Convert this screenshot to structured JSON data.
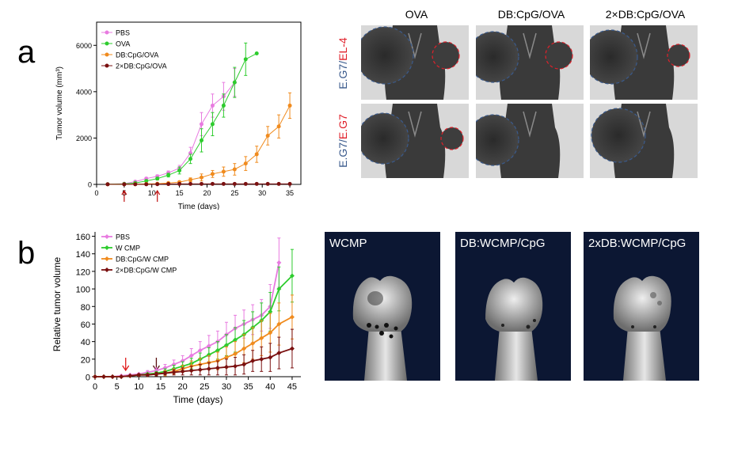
{
  "panel_a_letter": "a",
  "panel_b_letter": "b",
  "mouse_images": {
    "columns": [
      "OVA",
      "DB:CpG/OVA",
      "2×DB:CpG/OVA"
    ],
    "row_labels": [
      {
        "left": "E.G7",
        "sep": "/",
        "right": "EL-4"
      },
      {
        "left": "E.G7",
        "sep": "/",
        "right": "E.G7"
      }
    ],
    "left_color": "#3a5a8c",
    "right_color": "#e0202a"
  },
  "ct_images": {
    "labels": [
      "WCMP",
      "DB:WCMP/CpG",
      "2xDB:WCMP/CpG"
    ]
  },
  "chart_data": [
    {
      "type": "line",
      "xlabel": "Time (days)",
      "ylabel": "Tumor volume (mm³)",
      "xlim": [
        0,
        37
      ],
      "ylim": [
        0,
        7000
      ],
      "xticks": [
        0,
        5,
        10,
        15,
        20,
        25,
        30,
        35
      ],
      "yticks": [
        0,
        2000,
        4000,
        6000
      ],
      "arrows_at": [
        5,
        11
      ],
      "arrow_color": "#c01010",
      "legend_position": "top-left",
      "series": [
        {
          "name": "PBS",
          "color": "#e87be0",
          "x": [
            2,
            5,
            7,
            9,
            11,
            13,
            15,
            17,
            19,
            21,
            23,
            25
          ],
          "y": [
            10,
            30,
            120,
            250,
            350,
            500,
            700,
            1350,
            2600,
            3400,
            3800,
            4400
          ],
          "err": [
            0,
            0,
            30,
            50,
            60,
            80,
            120,
            250,
            500,
            500,
            600,
            600
          ]
        },
        {
          "name": "OVA",
          "color": "#2ecc2e",
          "x": [
            2,
            5,
            7,
            9,
            11,
            13,
            15,
            17,
            19,
            21,
            23,
            25,
            27,
            29
          ],
          "y": [
            10,
            20,
            60,
            150,
            250,
            400,
            600,
            1100,
            1900,
            2600,
            3400,
            4400,
            5400,
            5650
          ],
          "err": [
            0,
            0,
            20,
            40,
            60,
            80,
            150,
            200,
            500,
            500,
            500,
            650,
            700,
            0
          ]
        },
        {
          "name": "DB:CpG/OVA",
          "color": "#f08b1e",
          "x": [
            2,
            5,
            7,
            9,
            11,
            13,
            15,
            17,
            19,
            21,
            23,
            25,
            27,
            29,
            31,
            33,
            35
          ],
          "y": [
            5,
            5,
            10,
            20,
            30,
            60,
            100,
            200,
            300,
            450,
            550,
            650,
            900,
            1300,
            2100,
            2500,
            3400
          ],
          "err": [
            0,
            0,
            0,
            0,
            10,
            20,
            40,
            80,
            150,
            150,
            200,
            250,
            300,
            350,
            400,
            500,
            550
          ]
        },
        {
          "name": "2×DB:CpG/OVA",
          "color": "#7a1010",
          "x": [
            2,
            5,
            7,
            9,
            11,
            13,
            15,
            17,
            19,
            21,
            23,
            25,
            27,
            29,
            31,
            33,
            35
          ],
          "y": [
            5,
            5,
            5,
            5,
            10,
            15,
            20,
            20,
            20,
            20,
            20,
            20,
            20,
            20,
            20,
            20,
            20
          ],
          "err": [
            0,
            0,
            0,
            0,
            0,
            0,
            0,
            0,
            0,
            0,
            0,
            0,
            0,
            0,
            0,
            0,
            0
          ]
        }
      ]
    },
    {
      "type": "line",
      "xlabel": "Time (days)",
      "ylabel": "Relative tumor volume",
      "xlim": [
        0,
        47
      ],
      "ylim": [
        0,
        165
      ],
      "xticks": [
        0,
        5,
        10,
        15,
        20,
        25,
        30,
        35,
        40,
        45
      ],
      "yticks": [
        0,
        20,
        40,
        60,
        80,
        100,
        120,
        140,
        160
      ],
      "arrows_at": [
        7,
        14
      ],
      "arrow_colors": [
        "#e01a1a",
        "#5a0f0f"
      ],
      "legend_position": "top-left",
      "series": [
        {
          "name": "PBS",
          "color": "#e87be0",
          "x": [
            0,
            2,
            4,
            6,
            8,
            10,
            12,
            14,
            16,
            18,
            20,
            22,
            24,
            26,
            28,
            30,
            32,
            34,
            36,
            38,
            40,
            42
          ],
          "y": [
            0,
            0,
            0,
            1,
            2,
            3,
            5,
            7,
            10,
            14,
            18,
            24,
            30,
            35,
            40,
            48,
            55,
            60,
            65,
            70,
            80,
            130
          ],
          "err": [
            0,
            0,
            0,
            0,
            0,
            1,
            2,
            3,
            4,
            5,
            6,
            8,
            10,
            12,
            12,
            14,
            15,
            16,
            17,
            18,
            25,
            28
          ]
        },
        {
          "name": "W CMP",
          "color": "#2ecc2e",
          "x": [
            0,
            2,
            4,
            6,
            8,
            10,
            12,
            14,
            16,
            18,
            20,
            22,
            24,
            26,
            28,
            30,
            32,
            34,
            36,
            38,
            40,
            42,
            45
          ],
          "y": [
            0,
            0,
            0,
            0,
            1,
            2,
            3,
            4,
            6,
            9,
            12,
            15,
            20,
            25,
            30,
            36,
            42,
            48,
            56,
            64,
            74,
            100,
            115
          ],
          "err": [
            0,
            0,
            0,
            0,
            0,
            1,
            1,
            2,
            3,
            4,
            5,
            6,
            7,
            8,
            10,
            12,
            14,
            16,
            18,
            20,
            22,
            25,
            30
          ]
        },
        {
          "name": "DB:CpG/W CMP",
          "color": "#f08b1e",
          "x": [
            0,
            2,
            4,
            6,
            8,
            10,
            12,
            14,
            16,
            18,
            20,
            22,
            24,
            26,
            28,
            30,
            32,
            34,
            36,
            38,
            40,
            42,
            45
          ],
          "y": [
            0,
            0,
            0,
            0,
            1,
            2,
            2,
            3,
            4,
            6,
            9,
            12,
            14,
            16,
            18,
            22,
            26,
            32,
            38,
            44,
            50,
            60,
            68
          ],
          "err": [
            0,
            0,
            0,
            0,
            0,
            1,
            1,
            2,
            3,
            3,
            4,
            6,
            7,
            8,
            10,
            12,
            14,
            16,
            18,
            20,
            22,
            24,
            25
          ]
        },
        {
          "name": "2×DB:CpG/W CMP",
          "color": "#7a1010",
          "x": [
            0,
            2,
            4,
            6,
            8,
            10,
            12,
            14,
            16,
            18,
            20,
            22,
            24,
            26,
            28,
            30,
            32,
            34,
            36,
            38,
            40,
            42,
            45
          ],
          "y": [
            0,
            0,
            0,
            0,
            1,
            2,
            2,
            3,
            4,
            5,
            6,
            7,
            8,
            9,
            10,
            11,
            12,
            14,
            18,
            20,
            22,
            27,
            32
          ],
          "err": [
            0,
            0,
            0,
            0,
            0,
            1,
            1,
            2,
            2,
            3,
            4,
            5,
            6,
            7,
            8,
            9,
            10,
            11,
            12,
            14,
            16,
            18,
            22
          ]
        }
      ]
    }
  ]
}
